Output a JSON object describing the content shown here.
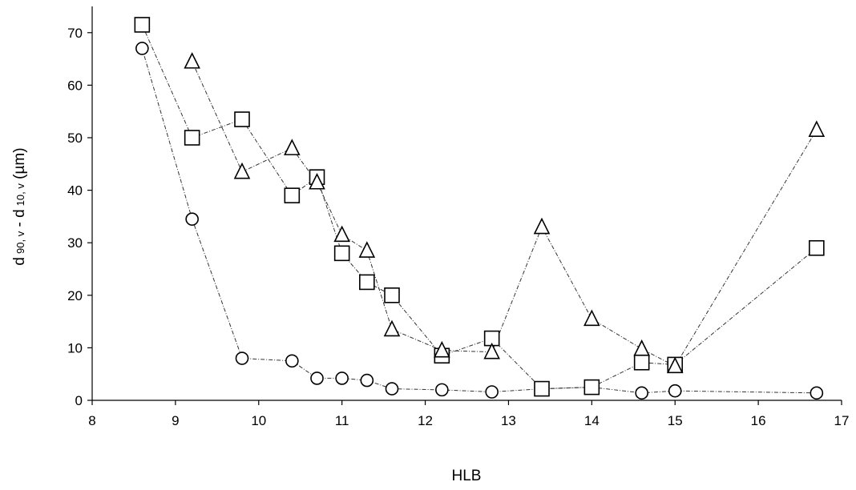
{
  "chart_data": {
    "type": "scatter",
    "xlabel": "HLB",
    "ylabel": {
      "d1": "d",
      "sub1": "90, v",
      "sep": " - d",
      "sub2": "10, v",
      "unit": " (µm)"
    },
    "xlim": [
      8,
      17
    ],
    "ylim": [
      0,
      75
    ],
    "xticks": [
      8,
      9,
      10,
      11,
      12,
      13,
      14,
      15,
      16,
      17
    ],
    "yticks": [
      0,
      10,
      20,
      30,
      40,
      50,
      60,
      70
    ],
    "grid": false,
    "legend": "none",
    "line_style": "dash-dot",
    "series": [
      {
        "marker": "circle",
        "x": [
          8.6,
          9.2,
          9.8,
          10.4,
          10.7,
          11.0,
          11.3,
          11.6,
          12.2,
          12.8,
          13.4,
          14.0,
          14.6,
          15.0,
          16.7
        ],
        "y": [
          67,
          34.5,
          8,
          7.5,
          4.2,
          4.2,
          3.8,
          2.2,
          2.0,
          1.6,
          2.2,
          2.5,
          1.4,
          1.8,
          1.4
        ]
      },
      {
        "marker": "square",
        "x": [
          8.6,
          9.2,
          9.8,
          10.4,
          10.7,
          11.0,
          11.3,
          11.6,
          12.2,
          12.8,
          13.4,
          14.0,
          14.6,
          15.0,
          16.7
        ],
        "y": [
          71.5,
          50,
          53.5,
          39,
          42.5,
          28,
          22.5,
          20,
          8.5,
          11.8,
          2.2,
          2.5,
          7.2,
          6.8,
          29
        ]
      },
      {
        "marker": "triangle",
        "x": [
          9.2,
          9.8,
          10.4,
          10.7,
          11.0,
          11.3,
          11.6,
          12.2,
          12.8,
          13.4,
          14.0,
          14.6,
          15.0,
          16.7
        ],
        "y": [
          64.5,
          43.5,
          48,
          41.5,
          31.5,
          28.5,
          13.5,
          9.5,
          9.2,
          33,
          15.5,
          9.8,
          6.5,
          51.5
        ]
      }
    ]
  }
}
